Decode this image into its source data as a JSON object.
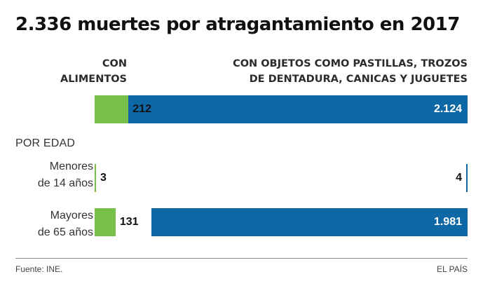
{
  "chart_data": {
    "type": "bar",
    "title": "2.336 muertes por atragantamiento en 2017",
    "section_label": "POR EDAD",
    "series": [
      {
        "name": "CON ALIMENTOS",
        "color": "#77c14a"
      },
      {
        "name": "CON OBJETOS COMO PASTILLAS, TROZOS DE DENTADURA, CANICAS Y JUGUETES",
        "color": "#0e68a5"
      }
    ],
    "header_lines": {
      "left": [
        "CON",
        "ALIMENTOS"
      ],
      "right": [
        "CON OBJETOS COMO PASTILLAS, TROZOS",
        "DE DENTADURA, CANICAS Y JUGUETES"
      ]
    },
    "rows": [
      {
        "key": "total",
        "lines": [],
        "food": 212,
        "food_label": "212",
        "objects": 2124,
        "objects_label": "2.124"
      },
      {
        "key": "menores",
        "lines": [
          "Menores",
          "de 14 años"
        ],
        "food": 3,
        "food_label": "3",
        "objects": 4,
        "objects_label": "4"
      },
      {
        "key": "mayores",
        "lines": [
          "Mayores",
          "de 65 años"
        ],
        "food": 131,
        "food_label": "131",
        "objects": 1981,
        "objects_label": "1.981"
      }
    ]
  },
  "footer": {
    "source": "Fuente: INE.",
    "brand": "EL PAÍS"
  }
}
